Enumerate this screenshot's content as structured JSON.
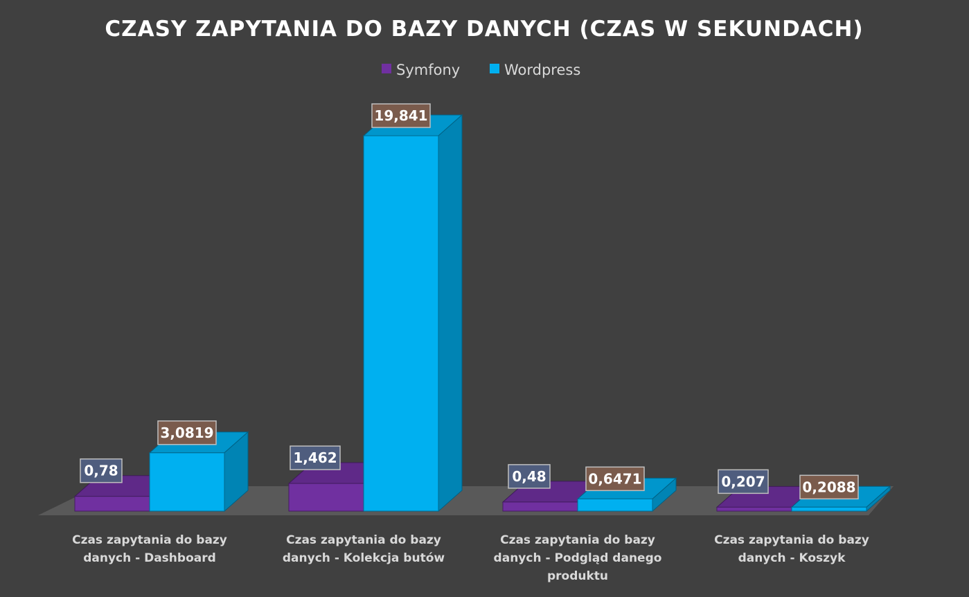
{
  "chart_data": {
    "type": "bar",
    "style": "3d-clustered-column",
    "title": "CZASY ZAPYTANIA DO BAZY DANYCH (CZAS W SEKUNDACH)",
    "xlabel": "",
    "ylabel": "",
    "legend_position": "top",
    "grid": false,
    "categories": [
      [
        "Czas zapytania do bazy",
        "danych - Dashboard"
      ],
      [
        "Czas zapytania do bazy",
        "danych - Kolekcja butów"
      ],
      [
        "Czas zapytania do bazy",
        "danych  - Podgląd danego",
        "produktu"
      ],
      [
        "Czas zapytania do bazy",
        "danych  - Koszyk"
      ]
    ],
    "series": [
      {
        "name": "Symfony",
        "values": [
          0.78,
          1.462,
          0.48,
          0.207
        ],
        "labels": [
          "0,78",
          "1,462",
          "0,48",
          "0,207"
        ],
        "color": "#7030A0"
      },
      {
        "name": "Wordpress",
        "values": [
          3.0819,
          19.841,
          0.6471,
          0.2088
        ],
        "labels": [
          "3,0819",
          "19,841",
          "0,6471",
          "0,2088"
        ],
        "color": "#00B0F0"
      }
    ],
    "colors": {
      "background": "#404040",
      "floor": "#595959",
      "label_box_symfony": "#4F5D7E",
      "label_box_wordpress": "#7A5B4C"
    }
  }
}
